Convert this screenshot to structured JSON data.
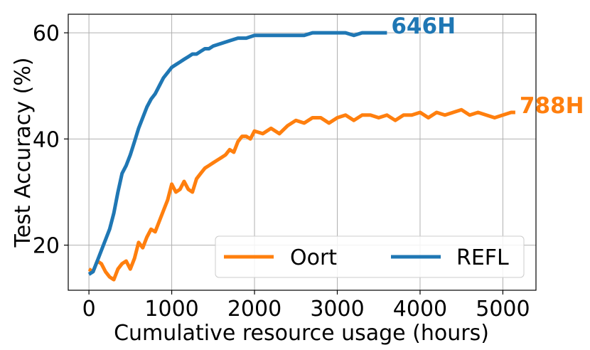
{
  "chart_data": {
    "type": "line",
    "xlabel": "Cumulative resource usage (hours)",
    "ylabel": "Test Accuracy (%)",
    "xlim": [
      -250,
      5400
    ],
    "ylim": [
      11.5,
      63.5
    ],
    "xticks": [
      0,
      1000,
      2000,
      3000,
      4000,
      5000
    ],
    "yticks": [
      20,
      40,
      60
    ],
    "grid": true,
    "legend": {
      "placement": "lower-right",
      "columns": 2
    },
    "series": [
      {
        "name": "Oort",
        "color": "#ff7f0e",
        "end_label": "788H",
        "x": [
          0,
          50,
          100,
          150,
          200,
          250,
          300,
          350,
          400,
          450,
          500,
          550,
          600,
          650,
          700,
          750,
          800,
          850,
          900,
          950,
          1000,
          1050,
          1100,
          1150,
          1200,
          1250,
          1300,
          1350,
          1400,
          1450,
          1500,
          1550,
          1600,
          1650,
          1700,
          1750,
          1800,
          1850,
          1900,
          1950,
          2000,
          2100,
          2200,
          2300,
          2400,
          2500,
          2600,
          2700,
          2800,
          2900,
          3000,
          3100,
          3200,
          3300,
          3400,
          3500,
          3600,
          3700,
          3800,
          3900,
          4000,
          4100,
          4200,
          4300,
          4400,
          4500,
          4600,
          4700,
          4800,
          4900,
          5000,
          5100,
          5150
        ],
        "y": [
          15.5,
          15.0,
          17.0,
          16.5,
          15.0,
          14.0,
          13.5,
          15.5,
          16.5,
          17.0,
          15.5,
          17.5,
          20.5,
          19.5,
          21.5,
          23.0,
          22.5,
          24.5,
          26.5,
          28.5,
          31.5,
          30.0,
          30.5,
          32.0,
          30.5,
          30.0,
          32.5,
          33.5,
          34.5,
          35.0,
          35.5,
          36.0,
          36.5,
          37.0,
          38.0,
          37.5,
          39.5,
          40.5,
          40.5,
          40.0,
          41.5,
          41.0,
          42.0,
          41.0,
          42.5,
          43.5,
          43.0,
          44.0,
          44.0,
          43.0,
          44.0,
          44.5,
          43.5,
          44.5,
          44.5,
          44.0,
          44.5,
          43.5,
          44.5,
          44.5,
          45.0,
          44.0,
          45.0,
          44.5,
          45.0,
          45.5,
          44.5,
          45.0,
          44.5,
          44.0,
          44.5,
          45.0,
          45.0
        ]
      },
      {
        "name": "REFL",
        "color": "#1f77b4",
        "end_label": "646H",
        "x": [
          0,
          50,
          100,
          150,
          200,
          250,
          300,
          350,
          400,
          450,
          500,
          550,
          600,
          650,
          700,
          750,
          800,
          850,
          900,
          950,
          1000,
          1050,
          1100,
          1150,
          1200,
          1250,
          1300,
          1350,
          1400,
          1450,
          1500,
          1600,
          1700,
          1800,
          1900,
          2000,
          2100,
          2200,
          2300,
          2400,
          2500,
          2600,
          2700,
          2800,
          2900,
          3000,
          3100,
          3200,
          3300,
          3400,
          3500,
          3600
        ],
        "y": [
          14.5,
          15.0,
          17.0,
          19.0,
          21.0,
          23.0,
          26.0,
          30.0,
          33.5,
          35.0,
          37.0,
          39.5,
          42.0,
          44.0,
          46.0,
          47.5,
          48.5,
          50.0,
          51.5,
          52.5,
          53.5,
          54.0,
          54.5,
          55.0,
          55.5,
          56.0,
          56.0,
          56.5,
          57.0,
          57.0,
          57.5,
          58.0,
          58.5,
          59.0,
          59.0,
          59.5,
          59.5,
          59.5,
          59.5,
          59.5,
          59.5,
          59.5,
          60.0,
          60.0,
          60.0,
          60.0,
          60.0,
          59.5,
          60.0,
          60.0,
          60.0,
          60.0
        ]
      }
    ]
  }
}
